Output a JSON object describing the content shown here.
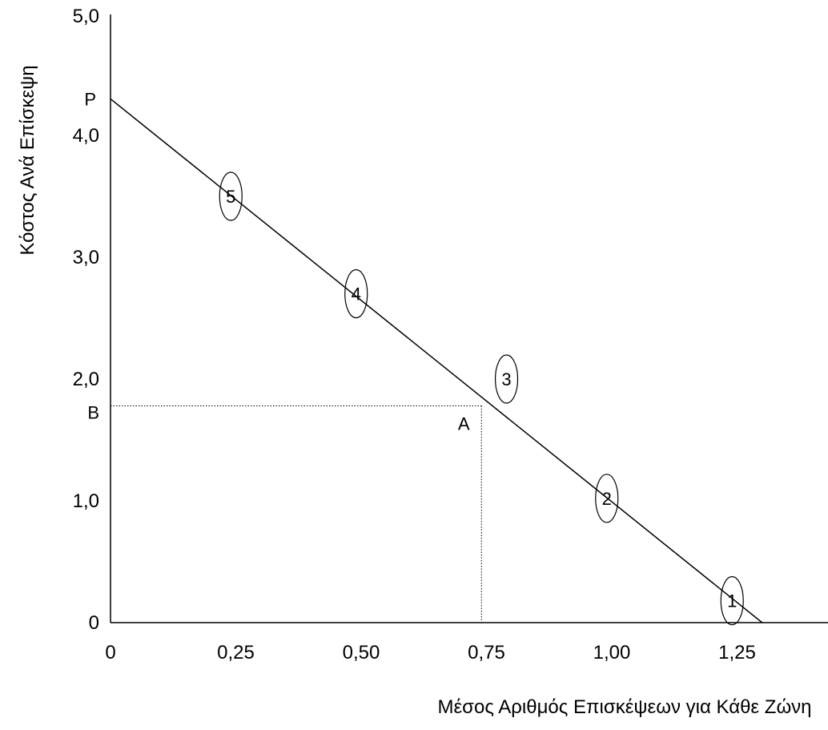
{
  "chart_data": {
    "type": "line",
    "title": "",
    "xlabel": "Μέσος Αριθμός Επισκέψεων για Κάθε Ζώνη",
    "ylabel": "Κόστος Ανά Επίσκεψη",
    "xlim": [
      0,
      1.43
    ],
    "ylim": [
      0,
      5.0
    ],
    "x_ticks": [
      {
        "value": 0,
        "label": "0"
      },
      {
        "value": 0.25,
        "label": "0,25"
      },
      {
        "value": 0.5,
        "label": "0,50"
      },
      {
        "value": 0.75,
        "label": "0,75"
      },
      {
        "value": 1.0,
        "label": "1,00"
      },
      {
        "value": 1.25,
        "label": "1,25"
      }
    ],
    "y_ticks": [
      {
        "value": 0,
        "label": "0"
      },
      {
        "value": 1.0,
        "label": "1,0"
      },
      {
        "value": 2.0,
        "label": "2,0"
      },
      {
        "value": 3.0,
        "label": "3,0"
      },
      {
        "value": 4.0,
        "label": "4,0"
      },
      {
        "value": 5.0,
        "label": "5,0"
      }
    ],
    "grid": false,
    "series": [
      {
        "points": [
          [
            0,
            4.3
          ],
          [
            1.3,
            0
          ]
        ]
      }
    ],
    "zones": [
      {
        "label": "5",
        "x": 0.24,
        "y": 3.5
      },
      {
        "label": "4",
        "x": 0.49,
        "y": 2.7
      },
      {
        "label": "3",
        "x": 0.79,
        "y": 2.0
      },
      {
        "label": "2",
        "x": 0.99,
        "y": 1.02
      },
      {
        "label": "1",
        "x": 1.24,
        "y": 0.18
      }
    ],
    "annotations": {
      "P": {
        "label": "P",
        "y": 4.3
      },
      "B": {
        "label": "B",
        "y": 1.78
      },
      "A": {
        "label": "A",
        "x": 0.74,
        "y": 1.78
      }
    }
  }
}
